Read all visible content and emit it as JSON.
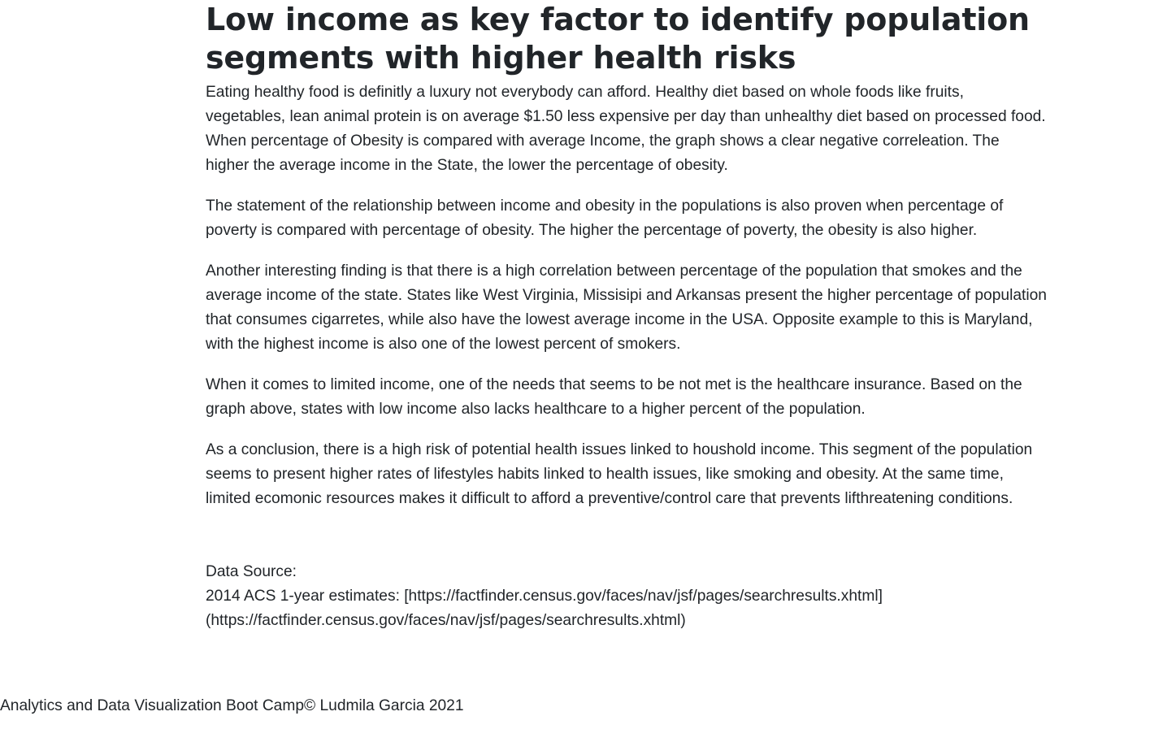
{
  "article": {
    "title": "Low income as key factor to identify population segments with higher health risks",
    "paragraphs": [
      "Eating healthy food is definitly a luxury not everybody can afford. Healthy diet based on whole foods like fruits, vegetables, lean animal protein is on average $1.50 less expensive per day than unhealthy diet based on processed food. When percentage of Obesity is compared with average Income, the graph shows a clear negative correleation. The higher the average income in the State, the lower the percentage of obesity.",
      "The statement of the relationship between income and obesity in the populations is also proven when percentage of poverty is compared with percentage of obesity. The higher the percentage of poverty, the obesity is also higher.",
      "Another interesting finding is that there is a high correlation between percentage of the population that smokes and the average income of the state. States like West Virginia, Missisipi and Arkansas present the higher percentage of population that consumes cigarretes, while also have the lowest average income in the USA. Opposite example to this is Maryland, with the highest income is also one of the lowest percent of smokers.",
      "When it comes to limited income, one of the needs that seems to be not met is the healthcare insurance. Based on the graph above, states with low income also lacks healthcare to a higher percent of the population.",
      "As a conclusion, there is a high risk of potential health issues linked to houshold income. This segment of the population seems to present higher rates of lifestyles habits linked to health issues, like smoking and obesity. At the same time, limited ecomonic resources makes it difficult to afford a preventive/control care that prevents lifthreatening conditions."
    ],
    "source_label": "Data Source:",
    "source_text": "2014 ACS 1-year estimates: [https://factfinder.census.gov/faces/nav/jsf/pages/searchresults.xhtml](https://factfinder.census.gov/faces/nav/jsf/pages/searchresults.xhtml)"
  },
  "footer": {
    "text": "Analytics and Data Visualization Boot Camp© Ludmila Garcia 2021"
  }
}
